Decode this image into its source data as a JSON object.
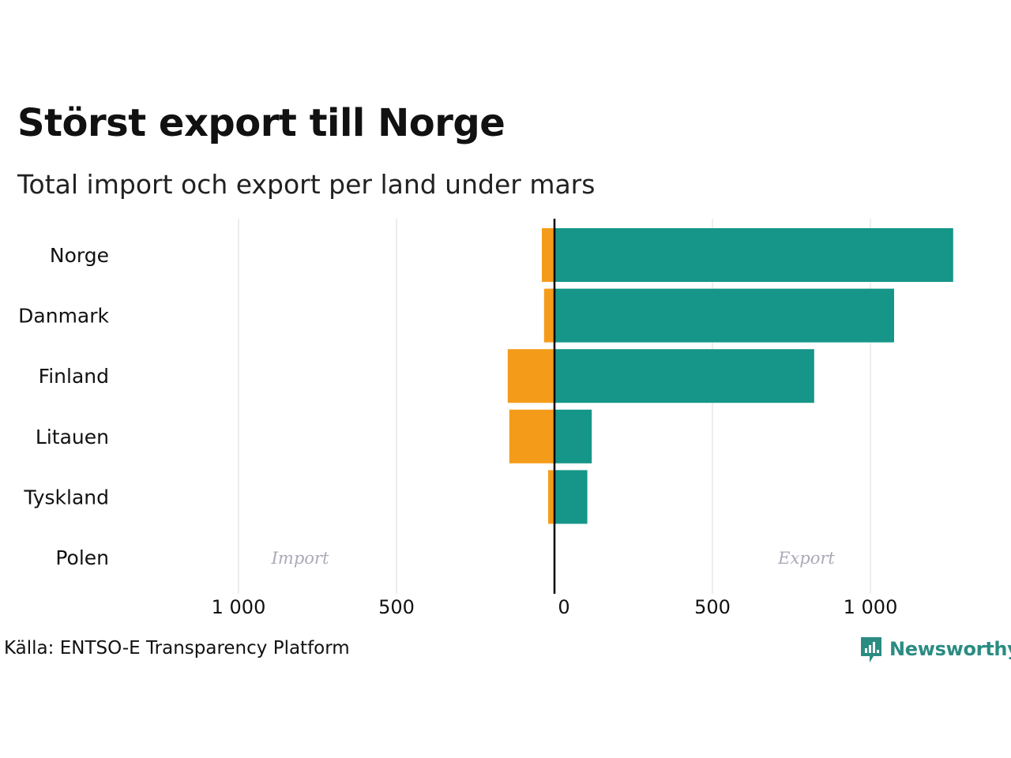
{
  "chart_data": {
    "type": "bar",
    "orientation": "horizontal-diverging",
    "title": "Störst export till Norge",
    "subtitle": "Total import och export per land under mars",
    "categories": [
      "Norge",
      "Danmark",
      "Finland",
      "Litauen",
      "Tyskland",
      "Polen"
    ],
    "series": [
      {
        "name": "Import",
        "color": "#f49c1a",
        "values": [
          40,
          33,
          148,
          143,
          20,
          0
        ]
      },
      {
        "name": "Export",
        "color": "#159688",
        "values": [
          1262,
          1075,
          822,
          118,
          104,
          0
        ]
      }
    ],
    "xlim": [
      -1000,
      1262
    ],
    "ticks": [
      {
        "value": -1000,
        "label": "1 000"
      },
      {
        "value": -500,
        "label": "500"
      },
      {
        "value": 0,
        "label": "0"
      },
      {
        "value": 500,
        "label": "500"
      },
      {
        "value": 1000,
        "label": "1 000"
      }
    ],
    "annotations": {
      "import": "Import",
      "export": "Export"
    },
    "grid": true
  },
  "footer": {
    "source": "Källa: ENTSO-E Transparency Platform",
    "brand": "Newsworthy",
    "brand_icon": "newsworthy-logo-icon"
  }
}
